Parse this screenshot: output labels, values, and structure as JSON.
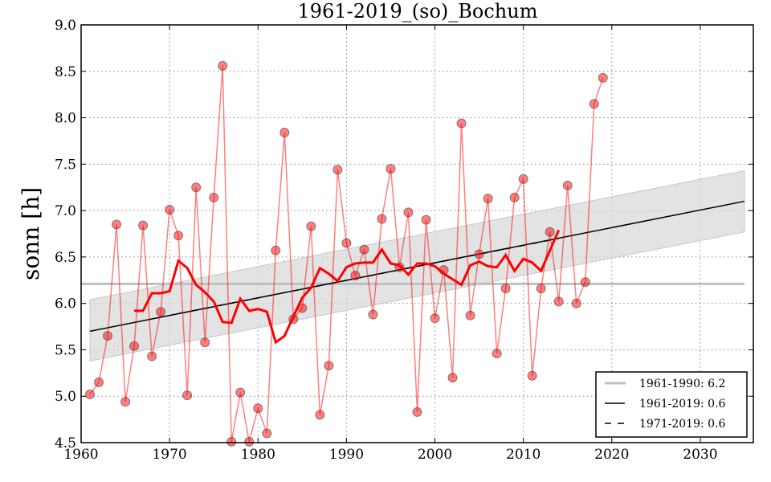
{
  "chart_data": {
    "type": "line",
    "title": "1961-2019_(so)_Bochum",
    "xlabel": "",
    "ylabel": "sonn [h]",
    "xlim": [
      1960,
      2036
    ],
    "ylim": [
      4.5,
      9.0
    ],
    "grid": true,
    "x_ticks": [
      "1960",
      "1970",
      "1980",
      "1990",
      "2000",
      "2010",
      "2020",
      "2030"
    ],
    "y_ticks": [
      "4.5",
      "5.0",
      "5.5",
      "6.0",
      "6.5",
      "7.0",
      "7.5",
      "8.0",
      "8.5",
      "9.0"
    ],
    "annual": {
      "name": "annual values",
      "color": "#ff0000",
      "x": [
        1961,
        1962,
        1963,
        1964,
        1965,
        1966,
        1967,
        1968,
        1969,
        1970,
        1971,
        1972,
        1973,
        1974,
        1975,
        1976,
        1977,
        1978,
        1979,
        1980,
        1981,
        1982,
        1983,
        1984,
        1985,
        1986,
        1987,
        1988,
        1989,
        1990,
        1991,
        1992,
        1993,
        1994,
        1995,
        1996,
        1997,
        1998,
        1999,
        2000,
        2001,
        2002,
        2003,
        2004,
        2005,
        2006,
        2007,
        2008,
        2009,
        2010,
        2011,
        2012,
        2013,
        2014,
        2015,
        2016,
        2017,
        2018,
        2019
      ],
      "y": [
        5.02,
        5.15,
        5.65,
        6.85,
        4.94,
        5.54,
        6.84,
        5.43,
        5.91,
        7.01,
        6.73,
        5.01,
        7.25,
        5.58,
        7.14,
        8.56,
        4.51,
        5.04,
        4.51,
        4.87,
        4.6,
        6.57,
        7.84,
        5.83,
        5.95,
        6.83,
        4.8,
        5.33,
        7.44,
        6.65,
        6.3,
        6.58,
        5.88,
        6.91,
        7.45,
        6.39,
        6.98,
        4.83,
        6.9,
        5.84,
        6.36,
        5.2,
        7.94,
        5.87,
        6.53,
        7.13,
        5.46,
        6.16,
        7.14,
        7.34,
        5.22,
        6.16,
        6.77,
        6.02,
        7.27,
        6.0,
        6.23,
        8.15,
        8.43
      ]
    },
    "running_mean": {
      "name": "running mean",
      "color": "#ff0000",
      "x": [
        1966,
        1967,
        1968,
        1969,
        1970,
        1971,
        1972,
        1973,
        1974,
        1975,
        1976,
        1977,
        1978,
        1979,
        1980,
        1981,
        1982,
        1983,
        1984,
        1985,
        1986,
        1987,
        1988,
        1989,
        1990,
        1991,
        1992,
        1993,
        1994,
        1995,
        1996,
        1997,
        1998,
        1999,
        2000,
        2001,
        2002,
        2003,
        2004,
        2005,
        2006,
        2007,
        2008,
        2009,
        2010,
        2011,
        2012,
        2013,
        2014
      ],
      "y": [
        5.92,
        5.92,
        6.11,
        6.11,
        6.13,
        6.46,
        6.38,
        6.2,
        6.12,
        6.02,
        5.8,
        5.79,
        6.05,
        5.92,
        5.94,
        5.91,
        5.58,
        5.65,
        5.86,
        6.06,
        6.17,
        6.38,
        6.32,
        6.24,
        6.39,
        6.43,
        6.44,
        6.44,
        6.58,
        6.43,
        6.41,
        6.31,
        6.43,
        6.43,
        6.4,
        6.32,
        6.26,
        6.2,
        6.41,
        6.45,
        6.4,
        6.39,
        6.52,
        6.35,
        6.48,
        6.44,
        6.35,
        6.57,
        6.79
      ]
    },
    "reference_mean": {
      "label": "1961-1990: 6.2",
      "value": 6.21,
      "color": "#bfbfbf"
    },
    "trend_1961": {
      "label": "1961-2019: 0.6",
      "x": [
        1961,
        2035
      ],
      "y": [
        5.7,
        7.1
      ],
      "color": "#000000"
    },
    "trend_1971": {
      "label": "1971-2019: 0.6",
      "x": [
        1971,
        2014
      ],
      "y": [
        5.89,
        6.7
      ],
      "color": "#000000"
    },
    "confidence_band": {
      "x": [
        1961,
        2035
      ],
      "lower": [
        5.38,
        6.77
      ],
      "upper": [
        6.04,
        7.43
      ],
      "color": "#d9d9d9"
    },
    "legend_position": "lower-right"
  }
}
